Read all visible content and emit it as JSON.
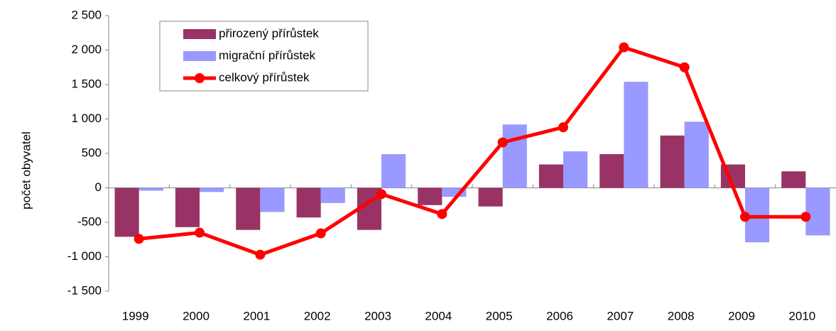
{
  "chart_data": {
    "type": "bar_line",
    "y_label": "počet obyvatel",
    "categories": [
      "1999",
      "2000",
      "2001",
      "2002",
      "2003",
      "2004",
      "2005",
      "2006",
      "2007",
      "2008",
      "2009",
      "2010"
    ],
    "series": [
      {
        "name": "přirozený přírůstek",
        "type": "bar",
        "color": "#993366",
        "values": [
          -710,
          -570,
          -610,
          -430,
          -610,
          -250,
          -270,
          340,
          490,
          760,
          340,
          240
        ]
      },
      {
        "name": "migrační přírůstek",
        "type": "bar",
        "color": "#9999ff",
        "values": [
          -40,
          -60,
          -350,
          -220,
          490,
          -130,
          920,
          530,
          1540,
          960,
          -790,
          -690
        ]
      },
      {
        "name": "celkový přírůstek",
        "type": "line",
        "color": "#ff0000",
        "values": [
          -740,
          -650,
          -970,
          -660,
          -90,
          -380,
          660,
          880,
          2040,
          1750,
          -420,
          -420
        ]
      }
    ],
    "ylim": [
      -1500,
      2500
    ],
    "yticks": [
      {
        "value": -1500,
        "label": "-1 500"
      },
      {
        "value": -1000,
        "label": "-1 000"
      },
      -500,
      0,
      500,
      {
        "value": 1000,
        "label": "1 000"
      },
      {
        "value": 1500,
        "label": "1 500"
      },
      {
        "value": 2000,
        "label": "2 000"
      },
      {
        "value": 2500,
        "label": "2 500"
      }
    ],
    "grid": false
  }
}
